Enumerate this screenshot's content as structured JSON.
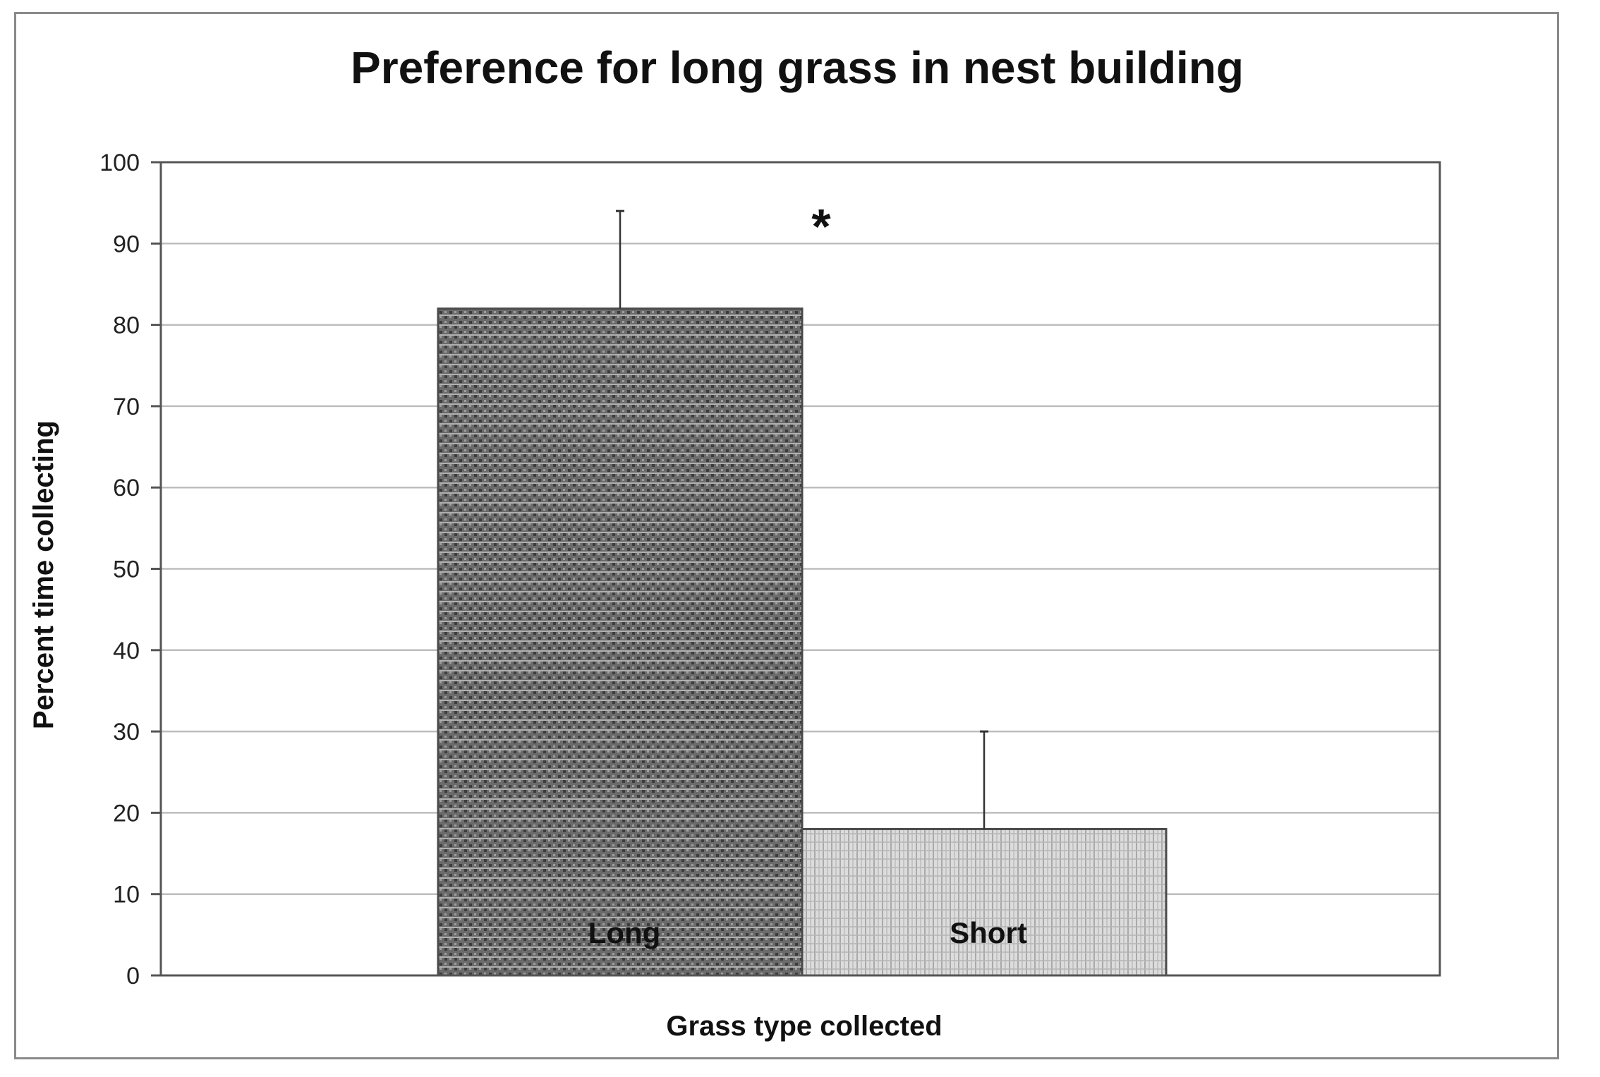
{
  "chart_data": {
    "type": "bar",
    "title": "Preference for long grass in nest building",
    "xlabel": "Grass type collected",
    "ylabel": "Percent time collecting",
    "categories": [
      "Long",
      "Short"
    ],
    "values": [
      82,
      18
    ],
    "error_upper": [
      94,
      30
    ],
    "ylim": [
      0,
      100
    ],
    "yticks": [
      "0",
      "10",
      "20",
      "30",
      "40",
      "50",
      "60",
      "70",
      "80",
      "90",
      "100"
    ],
    "grid": true,
    "legend": "none",
    "annotation": "*",
    "colors": {
      "long_fill": "#6a6a6a",
      "short_fill": "#cfcfcf",
      "grid": "#bdbdbd",
      "axis": "#555555"
    }
  }
}
